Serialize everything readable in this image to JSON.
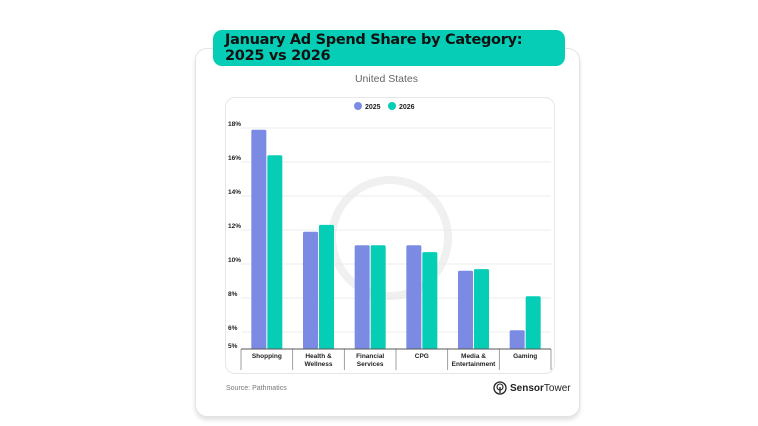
{
  "chart_data": {
    "type": "bar",
    "title": "January Ad Spend Share by Category: 2025 vs 2026",
    "subtitle": "United States",
    "categories": [
      [
        "Shopping"
      ],
      [
        "Health &",
        "Wellness"
      ],
      [
        "Financial",
        "Services"
      ],
      [
        "CPG"
      ],
      [
        "Media &",
        "Entertainment"
      ],
      [
        "Gaming"
      ]
    ],
    "series": [
      {
        "name": "2025",
        "color": "#7b8be3",
        "values": [
          17.9,
          11.9,
          11.1,
          11.1,
          9.6,
          6.1
        ]
      },
      {
        "name": "2026",
        "color": "#05cdb6",
        "values": [
          16.4,
          12.3,
          11.1,
          10.7,
          9.7,
          8.1
        ]
      }
    ],
    "yticks": [
      "5%",
      "6%",
      "8%",
      "10%",
      "12%",
      "14%",
      "16%",
      "18%"
    ],
    "ytick_values": [
      5,
      6,
      8,
      10,
      12,
      14,
      16,
      18
    ],
    "ylim": [
      5,
      18
    ],
    "grid": true,
    "legend": "top-center",
    "source": "Source: Pathmatics",
    "brand": {
      "bold": "Sensor",
      "regular": "Tower"
    }
  }
}
